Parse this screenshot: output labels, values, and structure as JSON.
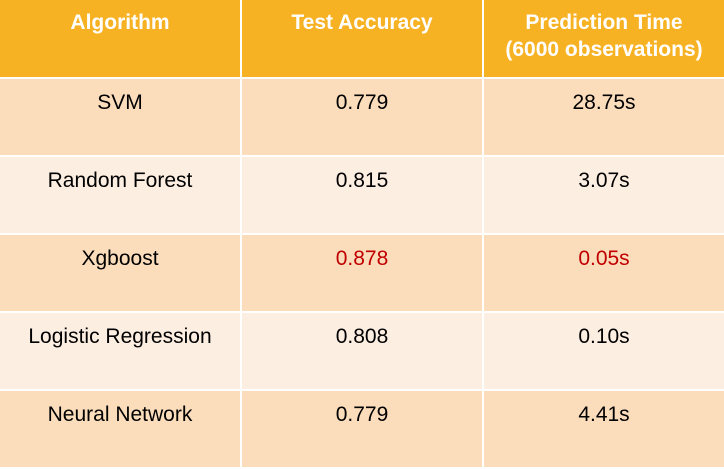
{
  "table": {
    "headers": [
      "Algorithm",
      "Test Accuracy",
      "Prediction Time\n(6000 observations)"
    ],
    "header_line1": [
      "Algorithm",
      "Test Accuracy",
      "Prediction Time"
    ],
    "header_line2": [
      "",
      "",
      "(6000 observations)"
    ],
    "rows": [
      {
        "algorithm": "SVM",
        "accuracy": "0.779",
        "time": "28.75s"
      },
      {
        "algorithm": "Random Forest",
        "accuracy": "0.815",
        "time": "3.07s"
      },
      {
        "algorithm": "Xgboost",
        "accuracy": "0.878",
        "time": "0.05s"
      },
      {
        "algorithm": "Logistic Regression",
        "accuracy": "0.808",
        "time": "0.10s"
      },
      {
        "algorithm": "Neural Network",
        "accuracy": "0.779",
        "time": "4.41s"
      }
    ],
    "highlight_row": "Xgboost"
  },
  "colors": {
    "header_bg": "#f7b224",
    "row_odd_bg": "#fbdcbb",
    "row_even_bg": "#fdeee2",
    "highlight_text": "#c00000"
  }
}
